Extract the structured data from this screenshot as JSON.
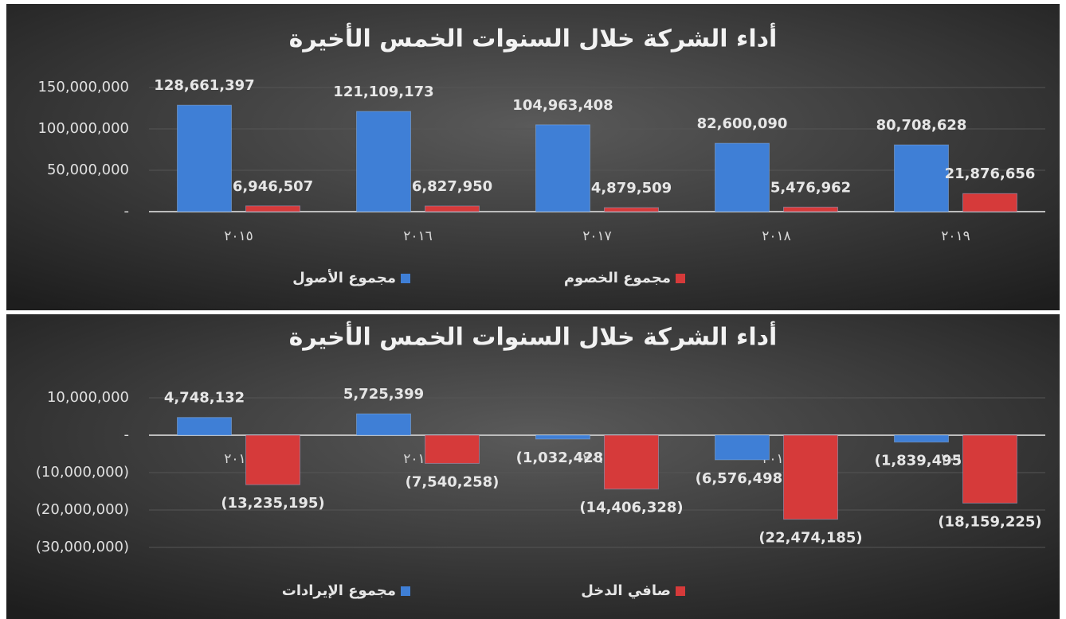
{
  "chart_data": [
    {
      "type": "bar",
      "title": "أداء الشركة خلال السنوات الخمس الأخيرة",
      "categories": [
        "٢٠١٥",
        "٢٠١٦",
        "٢٠١٧",
        "٢٠١٨",
        "٢٠١٩"
      ],
      "series": [
        {
          "name": "مجموع الأصول",
          "color": "#3f7fd6",
          "values": [
            128661397,
            121109173,
            104963408,
            82600090,
            80708628
          ],
          "value_labels": [
            "128,661,397",
            "121,109,173",
            "104,963,408",
            "82,600,090",
            "80,708,628"
          ]
        },
        {
          "name": "مجموع الخصوم",
          "color": "#d63a3a",
          "values": [
            6946507,
            6827950,
            4879509,
            5476962,
            21876656
          ],
          "value_labels": [
            "6,946,507",
            "6,827,950",
            "4,879,509",
            "5,476,962",
            "21,876,656"
          ]
        }
      ],
      "ylim": [
        0,
        150000000
      ],
      "yticks": [
        {
          "value": 0,
          "label": "-"
        },
        {
          "value": 50000000,
          "label": "50,000,000"
        },
        {
          "value": 100000000,
          "label": "100,000,000"
        },
        {
          "value": 150000000,
          "label": "150,000,000"
        }
      ],
      "grid": true
    },
    {
      "type": "bar",
      "title": "أداء الشركة خلال السنوات الخمس الأخيرة",
      "categories": [
        "٢٠١٥",
        "٢٠١٦",
        "٢٠١٧",
        "٢٠١٨",
        "٢٠١٩"
      ],
      "series": [
        {
          "name": "مجموع الإيرادات",
          "color": "#3f7fd6",
          "values": [
            4748132,
            5725399,
            -1032428,
            -6576498,
            -1839495
          ],
          "value_labels": [
            "4,748,132",
            "5,725,399",
            "(1,032,428)",
            "(6,576,498)",
            "(1,839,495)"
          ]
        },
        {
          "name": "صافي الدخل",
          "color": "#d63a3a",
          "values": [
            -13235195,
            -7540258,
            -14406328,
            -22474185,
            -18159225
          ],
          "value_labels": [
            "(13,235,195)",
            "(7,540,258)",
            "(14,406,328)",
            "(22,474,185)",
            "(18,159,225)"
          ]
        }
      ],
      "ylim": [
        -30000000,
        10000000
      ],
      "yticks": [
        {
          "value": -30000000,
          "label": "(30,000,000)"
        },
        {
          "value": -20000000,
          "label": "(20,000,000)"
        },
        {
          "value": -10000000,
          "label": "(10,000,000)"
        },
        {
          "value": 0,
          "label": "-"
        },
        {
          "value": 10000000,
          "label": "10,000,000"
        }
      ],
      "grid": true
    }
  ]
}
